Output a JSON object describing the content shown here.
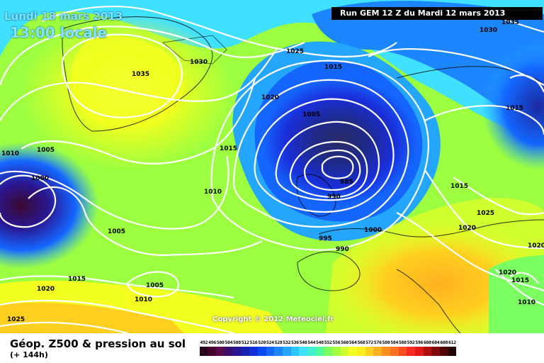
{
  "header": {
    "date": "Lundi 18 mars 2013",
    "time": "13:00 locale",
    "run": "Run GEM 12 Z du Mardi 12 mars 2013"
  },
  "copyright": "Copyright © 2012 Meteociel.fr",
  "legend": {
    "title": "Géop. Z500 & pression au sol",
    "subtitle": "(+ 144h)",
    "scale_values": [
      "492",
      "496",
      "500",
      "504",
      "508",
      "512",
      "516",
      "520",
      "524",
      "528",
      "532",
      "536",
      "540",
      "544",
      "548",
      "552",
      "556",
      "560",
      "564",
      "568",
      "572",
      "576",
      "580",
      "584",
      "588",
      "592",
      "596",
      "600",
      "604",
      "608",
      "612"
    ],
    "scale_colors": [
      "#2a0020",
      "#45002e",
      "#5a0a4a",
      "#3a0e6e",
      "#2a1692",
      "#1a22b4",
      "#1030d8",
      "#0a48f0",
      "#1466ff",
      "#1c86ff",
      "#24a6ff",
      "#2cc6ff",
      "#40e0ff",
      "#40f0d0",
      "#50ff9a",
      "#7cff60",
      "#a8ff40",
      "#d0ff30",
      "#f2ff20",
      "#ffee20",
      "#ffd020",
      "#ffb020",
      "#ff9020",
      "#ff7020",
      "#ff4c20",
      "#ff2a20",
      "#e01a1a",
      "#b01010",
      "#800a0a",
      "#500505",
      "#200000"
    ]
  },
  "isobar_labels": [
    {
      "text": "1035"
    },
    {
      "text": "1030"
    },
    {
      "text": "1025"
    },
    {
      "text": "1020"
    },
    {
      "text": "1015"
    },
    {
      "text": "1005"
    },
    {
      "text": "1010"
    },
    {
      "text": "1000"
    },
    {
      "text": "1005"
    },
    {
      "text": "1015"
    },
    {
      "text": "1020"
    },
    {
      "text": "1025"
    },
    {
      "text": "1005"
    },
    {
      "text": "1010"
    },
    {
      "text": "1015"
    },
    {
      "text": "1010"
    },
    {
      "text": "1005"
    },
    {
      "text": "985"
    },
    {
      "text": "990"
    },
    {
      "text": "995"
    },
    {
      "text": "1000"
    },
    {
      "text": "990"
    },
    {
      "text": "1015"
    },
    {
      "text": "1015"
    },
    {
      "text": "1025"
    },
    {
      "text": "1020"
    },
    {
      "text": "1020"
    },
    {
      "text": "1020"
    },
    {
      "text": "1015"
    },
    {
      "text": "1010"
    },
    {
      "text": "1030"
    },
    {
      "text": "1035"
    }
  ]
}
